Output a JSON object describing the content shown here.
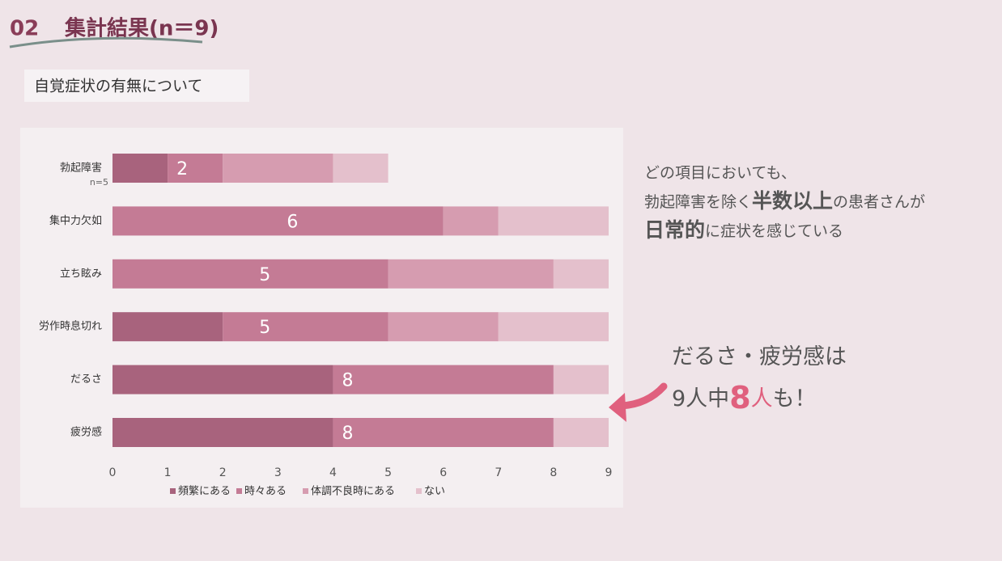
{
  "section_number": "02",
  "title": "集計結果(n＝9)",
  "subtitle": "自覚症状の有無について",
  "chart_data": {
    "type": "stacked-barh",
    "categories": [
      "勃起障害",
      "集中力欠如",
      "立ち眩み",
      "労作時息切れ",
      "だるさ",
      "疲労感"
    ],
    "category_notes": [
      "n=5",
      null,
      null,
      null,
      null,
      null
    ],
    "series": [
      {
        "name": "頻繁にある",
        "color": "#a8637d",
        "values": [
          1,
          0,
          0,
          2,
          4,
          4
        ]
      },
      {
        "name": "時々ある",
        "color": "#c47b95",
        "values": [
          1,
          6,
          5,
          3,
          4,
          4
        ]
      },
      {
        "name": "体調不良時にある",
        "color": "#d69cb0",
        "values": [
          2,
          1,
          3,
          2,
          0,
          0
        ]
      },
      {
        "name": "ない",
        "color": "#e4c0cc",
        "values": [
          1,
          2,
          1,
          2,
          1,
          1
        ]
      }
    ],
    "frequent_labels": [
      2,
      6,
      5,
      5,
      8,
      8
    ],
    "xlim": [
      0,
      9
    ],
    "xticks": [
      0,
      1,
      2,
      3,
      4,
      5,
      6,
      7,
      8,
      9
    ]
  },
  "note": {
    "lines": [
      [
        {
          "text": "どの項目においても、"
        }
      ],
      [
        {
          "text": "勃起障害を除く"
        },
        {
          "text": "半数以上",
          "em": true
        },
        {
          "text": "の患者さんが"
        }
      ],
      [
        {
          "text": "日常的",
          "em": true
        },
        {
          "text": "に症状を感じている"
        }
      ]
    ]
  },
  "callout": {
    "lines": [
      [
        {
          "text": "だるさ・疲労感は"
        }
      ],
      [
        {
          "text": "9人中"
        },
        {
          "text": "8",
          "em": true
        },
        {
          "text": "人",
          "accent": true
        },
        {
          "text": "も！"
        }
      ]
    ]
  }
}
